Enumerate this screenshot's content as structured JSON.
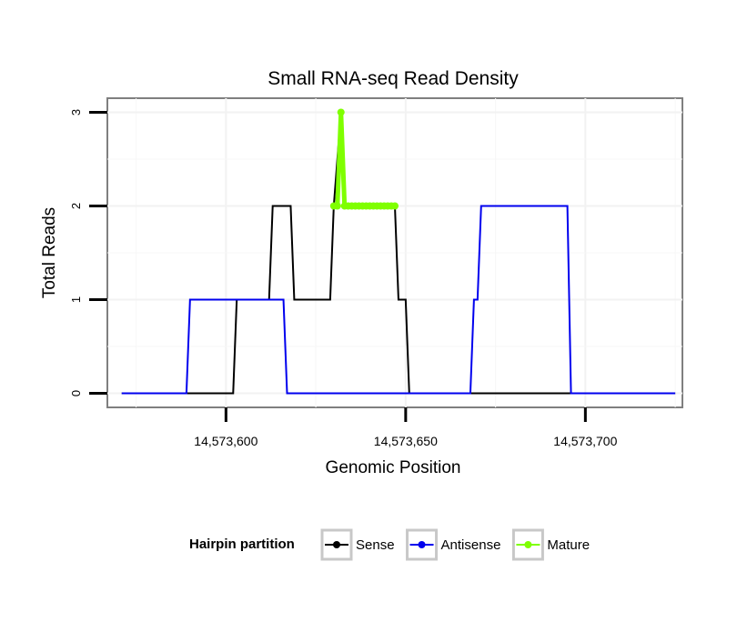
{
  "chart_data": {
    "type": "line",
    "title": "Small RNA-seq Read Density",
    "xlabel": "Genomic Position",
    "ylabel": "Total Reads",
    "xlim": [
      14573567,
      14573727
    ],
    "ylim": [
      -0.15,
      3.15
    ],
    "x_ticks": [
      14573600,
      14573650,
      14573700
    ],
    "x_tick_labels": [
      "14,573,600",
      "14,573,650",
      "14,573,700"
    ],
    "y_ticks": [
      0,
      1,
      2,
      3
    ],
    "y_tick_labels": [
      "0",
      "1",
      "2",
      "3"
    ],
    "grid": true,
    "legend_position": "bottom",
    "legend_title": "Hairpin partition",
    "series": [
      {
        "name": "Sense",
        "color": "#000000",
        "x": [
          14573571,
          14573602,
          14573603,
          14573612,
          14573613,
          14573618,
          14573619,
          14573629,
          14573630,
          14573632,
          14573633,
          14573647,
          14573648,
          14573650,
          14573651,
          14573725
        ],
        "y": [
          0,
          0,
          1,
          1,
          2,
          2,
          1,
          1,
          2,
          3,
          2,
          2,
          1,
          1,
          0,
          0
        ]
      },
      {
        "name": "Antisense",
        "color": "#0000ee",
        "x": [
          14573571,
          14573589,
          14573590,
          14573616,
          14573617,
          14573668,
          14573669,
          14573670,
          14573671,
          14573695,
          14573696,
          14573725
        ],
        "y": [
          0,
          0,
          1,
          1,
          0,
          0,
          1,
          1,
          2,
          2,
          0,
          0
        ]
      },
      {
        "name": "Mature",
        "color": "#7fff00",
        "x": [
          14573630,
          14573631,
          14573632,
          14573633,
          14573634,
          14573635,
          14573636,
          14573637,
          14573638,
          14573639,
          14573640,
          14573641,
          14573642,
          14573643,
          14573644,
          14573645,
          14573646,
          14573647
        ],
        "y": [
          2,
          2,
          3,
          2,
          2,
          2,
          2,
          2,
          2,
          2,
          2,
          2,
          2,
          2,
          2,
          2,
          2,
          2
        ]
      }
    ]
  }
}
